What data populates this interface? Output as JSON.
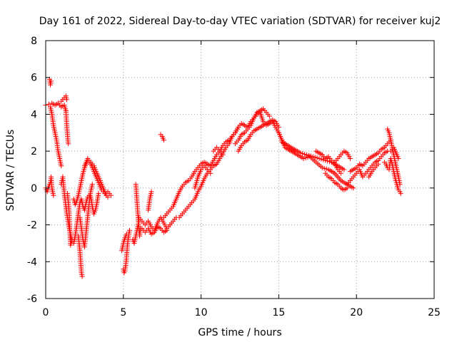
{
  "chart_data": {
    "type": "scatter",
    "title": "Day 161 of 2022, Sidereal Day-to-day VTEC variation (SDTVAR) for receiver kuj2",
    "xlabel": "GPS time / hours",
    "ylabel": "SDTVAR / TECUs",
    "xlim": [
      0,
      25
    ],
    "ylim": [
      -6,
      8
    ],
    "xticks": [
      0,
      5,
      10,
      15,
      20,
      25
    ],
    "yticks": [
      -6,
      -4,
      -2,
      0,
      2,
      4,
      6,
      8
    ],
    "grid": true,
    "marker": "+",
    "series": [
      {
        "name": "SDTVAR",
        "color": "#ff0000",
        "tracks": [
          {
            "x": [
              0.25,
              0.3,
              0.35
            ],
            "y": [
              5.9,
              5.6,
              5.8
            ]
          },
          {
            "x": [
              0.0,
              0.2,
              0.4,
              0.6,
              0.8,
              1.0,
              1.2,
              1.3
            ],
            "y": [
              4.5,
              4.55,
              4.6,
              4.5,
              4.6,
              4.4,
              4.5,
              4.2
            ]
          },
          {
            "x": [
              1.0,
              1.1,
              1.2,
              1.3,
              1.35
            ],
            "y": [
              4.7,
              4.8,
              4.9,
              5.0,
              4.8
            ]
          },
          {
            "x": [
              1.3,
              1.35,
              1.4,
              1.45
            ],
            "y": [
              4.2,
              3.5,
              2.9,
              2.4
            ]
          },
          {
            "x": [
              0.3,
              0.4,
              0.5,
              0.6,
              0.7,
              0.8,
              0.9,
              1.0
            ],
            "y": [
              4.4,
              4.0,
              3.4,
              3.0,
              2.6,
              2.0,
              1.6,
              1.2
            ]
          },
          {
            "x": [
              0.0,
              0.1,
              0.2,
              0.3,
              0.35,
              0.4,
              0.5
            ],
            "y": [
              0.0,
              -0.2,
              0.1,
              0.3,
              0.6,
              0.0,
              -0.4
            ]
          },
          {
            "x": [
              1.0,
              1.1,
              1.2,
              1.3,
              1.4,
              1.5,
              1.6,
              1.7,
              1.8,
              1.9,
              2.0,
              2.1,
              2.2,
              2.3,
              2.4,
              2.5,
              2.6,
              2.7,
              2.8
            ],
            "y": [
              0.2,
              0.6,
              -0.3,
              -1.0,
              -1.6,
              -2.1,
              -2.5,
              -2.9,
              -3.0,
              -2.6,
              -2.0,
              -1.4,
              -0.8,
              -0.6,
              -1.0,
              -1.2,
              -0.8,
              -0.5,
              -0.4
            ]
          },
          {
            "x": [
              1.4,
              1.5,
              1.55,
              1.6,
              1.7
            ],
            "y": [
              -0.3,
              -1.2,
              -2.2,
              -3.1,
              -2.8
            ]
          },
          {
            "x": [
              2.1,
              2.2,
              2.25,
              2.3,
              2.35
            ],
            "y": [
              -2.6,
              -3.4,
              -4.0,
              -4.6,
              -4.8
            ]
          },
          {
            "x": [
              2.2,
              2.3,
              2.4,
              2.5,
              2.6,
              2.7,
              2.8,
              2.9,
              3.0
            ],
            "y": [
              -1.6,
              -2.2,
              -2.8,
              -3.2,
              -2.4,
              -1.6,
              -0.8,
              -0.2,
              0.2
            ]
          },
          {
            "x": [
              1.8,
              1.9,
              2.0,
              2.1,
              2.2,
              2.3,
              2.4,
              2.5,
              2.6,
              2.7,
              2.8,
              2.9,
              3.0,
              3.1,
              3.2,
              3.3,
              3.4,
              3.5,
              3.6,
              3.7,
              3.8,
              3.9,
              4.0,
              4.1,
              4.2
            ],
            "y": [
              -0.6,
              -0.9,
              -0.7,
              -0.4,
              0.0,
              0.4,
              0.8,
              1.1,
              1.3,
              1.5,
              1.4,
              1.3,
              1.1,
              0.9,
              0.7,
              0.5,
              0.3,
              0.1,
              -0.1,
              -0.2,
              -0.3,
              -0.3,
              -0.2,
              -0.3,
              -0.4
            ]
          },
          {
            "x": [
              2.5,
              2.6,
              2.7,
              2.8,
              2.9,
              3.0,
              3.1,
              3.2,
              3.3,
              3.4,
              3.5,
              3.6,
              3.7,
              3.8,
              3.9,
              4.0
            ],
            "y": [
              1.2,
              1.4,
              1.6,
              1.5,
              1.4,
              1.3,
              1.2,
              1.0,
              0.8,
              0.6,
              0.4,
              0.2,
              0.0,
              -0.2,
              -0.4,
              -0.5
            ]
          },
          {
            "x": [
              2.9,
              3.0,
              3.1,
              3.2,
              3.3,
              3.4
            ],
            "y": [
              -0.5,
              -1.0,
              -1.4,
              -1.2,
              -0.8,
              -0.3
            ]
          },
          {
            "x": [
              5.0,
              5.05,
              5.1,
              5.15,
              5.2,
              5.25,
              5.3,
              5.35,
              5.4
            ],
            "y": [
              -4.4,
              -4.6,
              -4.5,
              -4.2,
              -3.8,
              -3.2,
              -2.8,
              -2.5,
              -2.3
            ]
          },
          {
            "x": [
              4.9,
              5.0,
              5.1,
              5.2
            ],
            "y": [
              -3.4,
              -3.0,
              -2.7,
              -2.5
            ]
          },
          {
            "x": [
              5.8,
              5.85,
              5.9,
              5.95,
              6.0,
              6.05,
              6.1
            ],
            "y": [
              0.2,
              -0.4,
              -1.0,
              -1.6,
              -2.2,
              -2.6,
              -2.2
            ]
          },
          {
            "x": [
              5.6,
              5.7,
              5.8,
              5.9,
              6.0
            ],
            "y": [
              -2.8,
              -3.0,
              -2.6,
              -2.2,
              -1.8
            ]
          },
          {
            "x": [
              6.0,
              6.2,
              6.4,
              6.6,
              6.8,
              7.0,
              7.2,
              7.4,
              7.6,
              7.8,
              8.0
            ],
            "y": [
              -1.6,
              -1.8,
              -2.0,
              -1.8,
              -2.1,
              -2.3,
              -1.9,
              -1.6,
              -1.9,
              -2.2,
              -2.0
            ]
          },
          {
            "x": [
              6.2,
              6.4,
              6.6,
              6.8,
              7.0,
              7.2,
              7.4,
              7.6,
              7.8
            ],
            "y": [
              -2.2,
              -2.4,
              -2.2,
              -2.5,
              -2.4,
              -2.1,
              -2.2,
              -2.4,
              -2.3
            ]
          },
          {
            "x": [
              6.6,
              6.7,
              6.8
            ],
            "y": [
              -1.2,
              -0.6,
              -0.2
            ]
          },
          {
            "x": [
              7.4,
              7.5,
              7.6
            ],
            "y": [
              2.9,
              2.8,
              2.6
            ]
          },
          {
            "x": [
              7.6,
              7.8,
              8.0,
              8.2,
              8.4,
              8.6,
              8.8,
              9.0,
              9.2,
              9.4,
              9.6,
              9.8,
              10.0,
              10.2,
              10.4,
              10.6,
              10.8,
              11.0,
              11.2,
              11.4,
              11.6,
              11.8,
              12.0
            ],
            "y": [
              -1.6,
              -1.4,
              -1.2,
              -1.0,
              -0.6,
              -0.2,
              0.1,
              0.3,
              0.4,
              0.6,
              0.9,
              1.1,
              1.3,
              1.4,
              1.3,
              1.2,
              1.5,
              1.8,
              2.0,
              2.3,
              2.5,
              2.6,
              2.8
            ]
          },
          {
            "x": [
              8.0,
              8.2,
              8.4,
              8.6,
              8.8,
              9.0,
              9.2,
              9.4,
              9.6,
              9.8,
              10.0,
              10.2,
              10.4,
              10.6,
              10.8,
              11.0,
              11.2,
              11.4,
              11.6,
              11.8,
              12.0,
              12.2,
              12.4
            ],
            "y": [
              -2.0,
              -1.8,
              -1.6,
              -1.6,
              -1.4,
              -1.2,
              -1.0,
              -0.8,
              -0.6,
              -0.2,
              0.1,
              0.5,
              0.8,
              1.0,
              1.2,
              1.3,
              1.6,
              1.9,
              2.2,
              2.4,
              2.8,
              3.0,
              3.3
            ]
          },
          {
            "x": [
              9.6,
              9.8,
              10.0,
              10.2,
              10.4,
              10.6
            ],
            "y": [
              0.0,
              0.6,
              1.0,
              1.2,
              1.0,
              0.8
            ]
          },
          {
            "x": [
              10.8,
              11.0,
              11.2,
              11.4
            ],
            "y": [
              2.0,
              2.2,
              2.0,
              1.8
            ]
          },
          {
            "x": [
              12.0,
              12.2,
              12.4,
              12.6,
              12.8,
              13.0,
              13.2,
              13.4,
              13.6,
              13.8,
              14.0,
              14.2,
              14.4,
              14.6,
              14.8,
              15.0,
              15.2,
              15.4,
              15.6,
              15.8,
              16.0
            ],
            "y": [
              2.8,
              3.0,
              3.3,
              3.5,
              3.4,
              3.3,
              3.6,
              3.8,
              4.0,
              4.1,
              3.6,
              3.4,
              3.5,
              3.6,
              3.3,
              3.0,
              2.6,
              2.4,
              2.2,
              2.1,
              2.0
            ]
          },
          {
            "x": [
              12.2,
              12.4,
              12.6,
              12.8,
              13.0,
              13.2,
              13.4,
              13.6,
              13.8,
              14.0,
              14.2,
              14.4
            ],
            "y": [
              2.4,
              2.6,
              2.9,
              3.0,
              3.2,
              3.4,
              3.8,
              4.1,
              4.2,
              4.3,
              4.1,
              3.9
            ]
          },
          {
            "x": [
              12.4,
              12.6,
              12.8,
              13.0,
              13.2,
              13.4,
              13.6,
              13.8,
              14.0,
              14.2,
              14.4,
              14.6,
              14.8,
              15.0
            ],
            "y": [
              2.0,
              2.3,
              2.5,
              2.6,
              2.9,
              3.1,
              3.2,
              3.3,
              3.4,
              3.5,
              3.6,
              3.7,
              3.6,
              3.3
            ]
          },
          {
            "x": [
              15.0,
              15.4,
              15.8,
              16.2,
              16.6,
              17.0,
              17.4,
              17.8,
              18.2,
              18.6,
              19.0,
              19.4,
              19.8
            ],
            "y": [
              3.0,
              2.2,
              2.0,
              1.8,
              1.6,
              1.7,
              1.4,
              1.1,
              1.0,
              0.8,
              0.4,
              0.2,
              0.0
            ]
          },
          {
            "x": [
              15.2,
              15.6,
              16.0,
              16.4,
              16.8,
              17.2,
              17.6,
              18.0,
              18.4,
              18.8,
              19.2
            ],
            "y": [
              2.5,
              2.3,
              2.1,
              1.9,
              1.8,
              1.7,
              1.6,
              1.5,
              1.4,
              1.2,
              1.0
            ]
          },
          {
            "x": [
              17.4,
              17.6,
              17.8,
              18.0,
              18.2,
              18.4,
              18.6,
              18.8,
              19.0
            ],
            "y": [
              2.0,
              1.9,
              1.8,
              1.6,
              1.7,
              1.5,
              1.3,
              1.0,
              0.8
            ]
          },
          {
            "x": [
              18.0,
              18.2,
              18.4,
              18.6,
              18.8,
              19.0,
              19.2,
              19.4
            ],
            "y": [
              0.8,
              0.6,
              0.5,
              0.3,
              0.2,
              0.0,
              -0.1,
              0.0
            ]
          },
          {
            "x": [
              18.6,
              18.8,
              19.0,
              19.2,
              19.4,
              19.6
            ],
            "y": [
              1.4,
              1.6,
              1.8,
              2.0,
              1.9,
              1.6
            ]
          },
          {
            "x": [
              19.4,
              19.6,
              19.8,
              20.0,
              20.2,
              20.4,
              20.6,
              20.8,
              21.0,
              21.2,
              21.4,
              21.6,
              21.8,
              22.0
            ],
            "y": [
              0.2,
              0.4,
              0.6,
              0.8,
              1.0,
              0.6,
              0.8,
              1.0,
              1.2,
              1.4,
              1.5,
              1.7,
              1.9,
              2.0
            ]
          },
          {
            "x": [
              19.6,
              19.8,
              20.0,
              20.2,
              20.4,
              20.6,
              20.8,
              21.0,
              21.2,
              21.4,
              21.6,
              21.8,
              22.0,
              22.2
            ],
            "y": [
              0.9,
              1.0,
              1.1,
              1.3,
              1.2,
              1.4,
              1.6,
              1.7,
              1.8,
              1.9,
              2.1,
              2.2,
              2.4,
              2.6
            ]
          },
          {
            "x": [
              20.8,
              21.0,
              21.2,
              21.4
            ],
            "y": [
              0.6,
              0.9,
              1.1,
              1.3
            ]
          },
          {
            "x": [
              22.0,
              22.1,
              22.2,
              22.3,
              22.4,
              22.5,
              22.6,
              22.7,
              22.8
            ],
            "y": [
              3.2,
              3.0,
              2.6,
              2.2,
              1.8,
              1.4,
              1.0,
              0.6,
              0.2
            ]
          },
          {
            "x": [
              21.8,
              21.9,
              22.0,
              22.1,
              22.2,
              22.3,
              22.4,
              22.5,
              22.6,
              22.7,
              22.8,
              22.85
            ],
            "y": [
              1.4,
              1.3,
              1.1,
              1.0,
              1.6,
              1.3,
              0.9,
              0.5,
              0.2,
              -0.1,
              -0.2,
              -0.3
            ]
          },
          {
            "x": [
              22.2,
              22.4,
              22.6,
              22.7
            ],
            "y": [
              2.0,
              2.2,
              1.8,
              1.6
            ]
          }
        ]
      }
    ]
  }
}
